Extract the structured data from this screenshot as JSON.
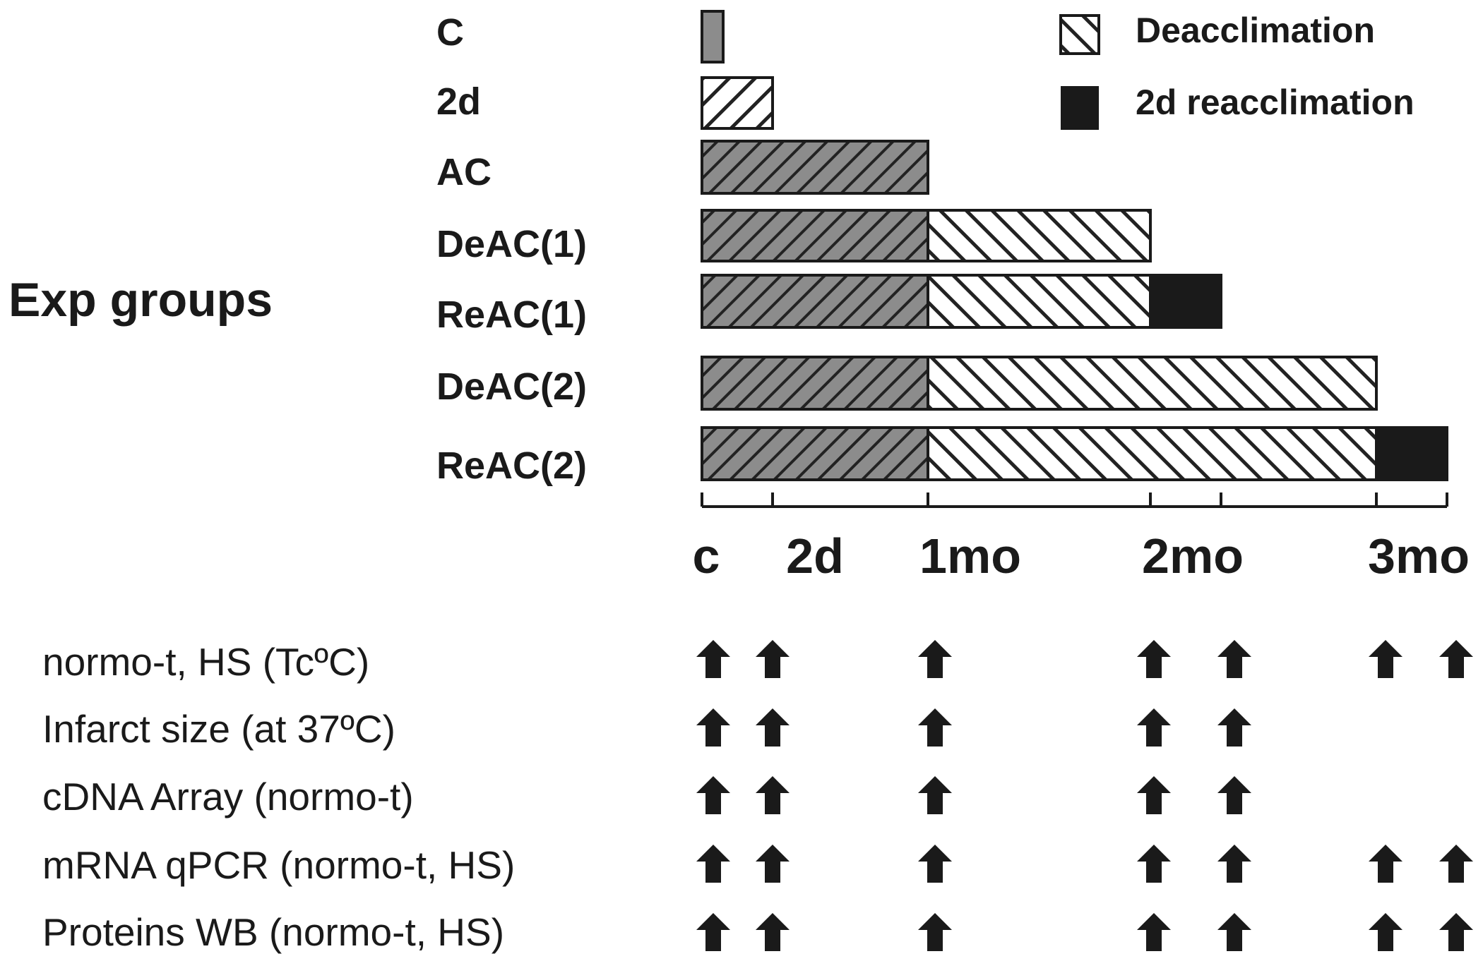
{
  "title": "Exp groups",
  "groups": [
    {
      "label": "C",
      "segments": [
        {
          "kind": "control",
          "from": 0,
          "to": 0.3
        }
      ]
    },
    {
      "label": "2d",
      "segments": [
        {
          "kind": "heat_acclimation",
          "from": 0,
          "to": 1
        }
      ]
    },
    {
      "label": "AC",
      "segments": [
        {
          "kind": "acclimation",
          "from": 0,
          "to": 3.2
        }
      ]
    },
    {
      "label": "DeAC(1)",
      "segments": [
        {
          "kind": "acclimation",
          "from": 0,
          "to": 3.2
        },
        {
          "kind": "deacclimation",
          "from": 3.2,
          "to": 6.35
        }
      ]
    },
    {
      "label": "ReAC(1)",
      "segments": [
        {
          "kind": "acclimation",
          "from": 0,
          "to": 3.2
        },
        {
          "kind": "deacclimation",
          "from": 3.2,
          "to": 6.35
        },
        {
          "kind": "reacclimation",
          "from": 6.35,
          "to": 7.35
        }
      ]
    },
    {
      "label": "DeAC(2)",
      "segments": [
        {
          "kind": "acclimation",
          "from": 0,
          "to": 3.2
        },
        {
          "kind": "deacclimation",
          "from": 3.2,
          "to": 9.55
        }
      ]
    },
    {
      "label": "ReAC(2)",
      "segments": [
        {
          "kind": "acclimation",
          "from": 0,
          "to": 3.2
        },
        {
          "kind": "deacclimation",
          "from": 3.2,
          "to": 9.55
        },
        {
          "kind": "reacclimation",
          "from": 9.55,
          "to": 10.55
        }
      ]
    }
  ],
  "legend": [
    {
      "kind": "deacclimation",
      "label": "Deacclimation"
    },
    {
      "kind": "reacclimation",
      "label": "2d reacclimation"
    }
  ],
  "axis": {
    "ticks": [
      0,
      1,
      3.2,
      6.35,
      7.35,
      9.55,
      10.55
    ],
    "tick_labels": [
      {
        "value": 0,
        "label": "c"
      },
      {
        "value": 1,
        "label": "2d"
      },
      {
        "value": 3.2,
        "label": "1mo"
      },
      {
        "value": 6.35,
        "label": "2mo"
      },
      {
        "value": 9.55,
        "label": "3mo"
      }
    ]
  },
  "measurements": [
    {
      "label": "normo-t, HS (TcºC)",
      "points": [
        0,
        1,
        3.2,
        6.35,
        7.35,
        9.55,
        10.55
      ]
    },
    {
      "label": "Infarct size (at 37ºC)",
      "points": [
        0,
        1,
        3.2,
        6.35,
        7.35
      ]
    },
    {
      "label": "cDNA Array (normo-t)",
      "points": [
        0,
        1,
        3.2,
        6.35,
        7.35
      ]
    },
    {
      "label": "mRNA qPCR (normo-t, HS)",
      "points": [
        0,
        1,
        3.2,
        6.35,
        7.35,
        9.55,
        10.55
      ]
    },
    {
      "label": "Proteins WB (normo-t, HS)",
      "points": [
        0,
        1,
        3.2,
        6.35,
        7.35,
        9.55,
        10.55
      ]
    }
  ],
  "colors": {
    "gray_fill": "#8c8c8c",
    "black": "#1a1a1a",
    "white": "#ffffff"
  }
}
